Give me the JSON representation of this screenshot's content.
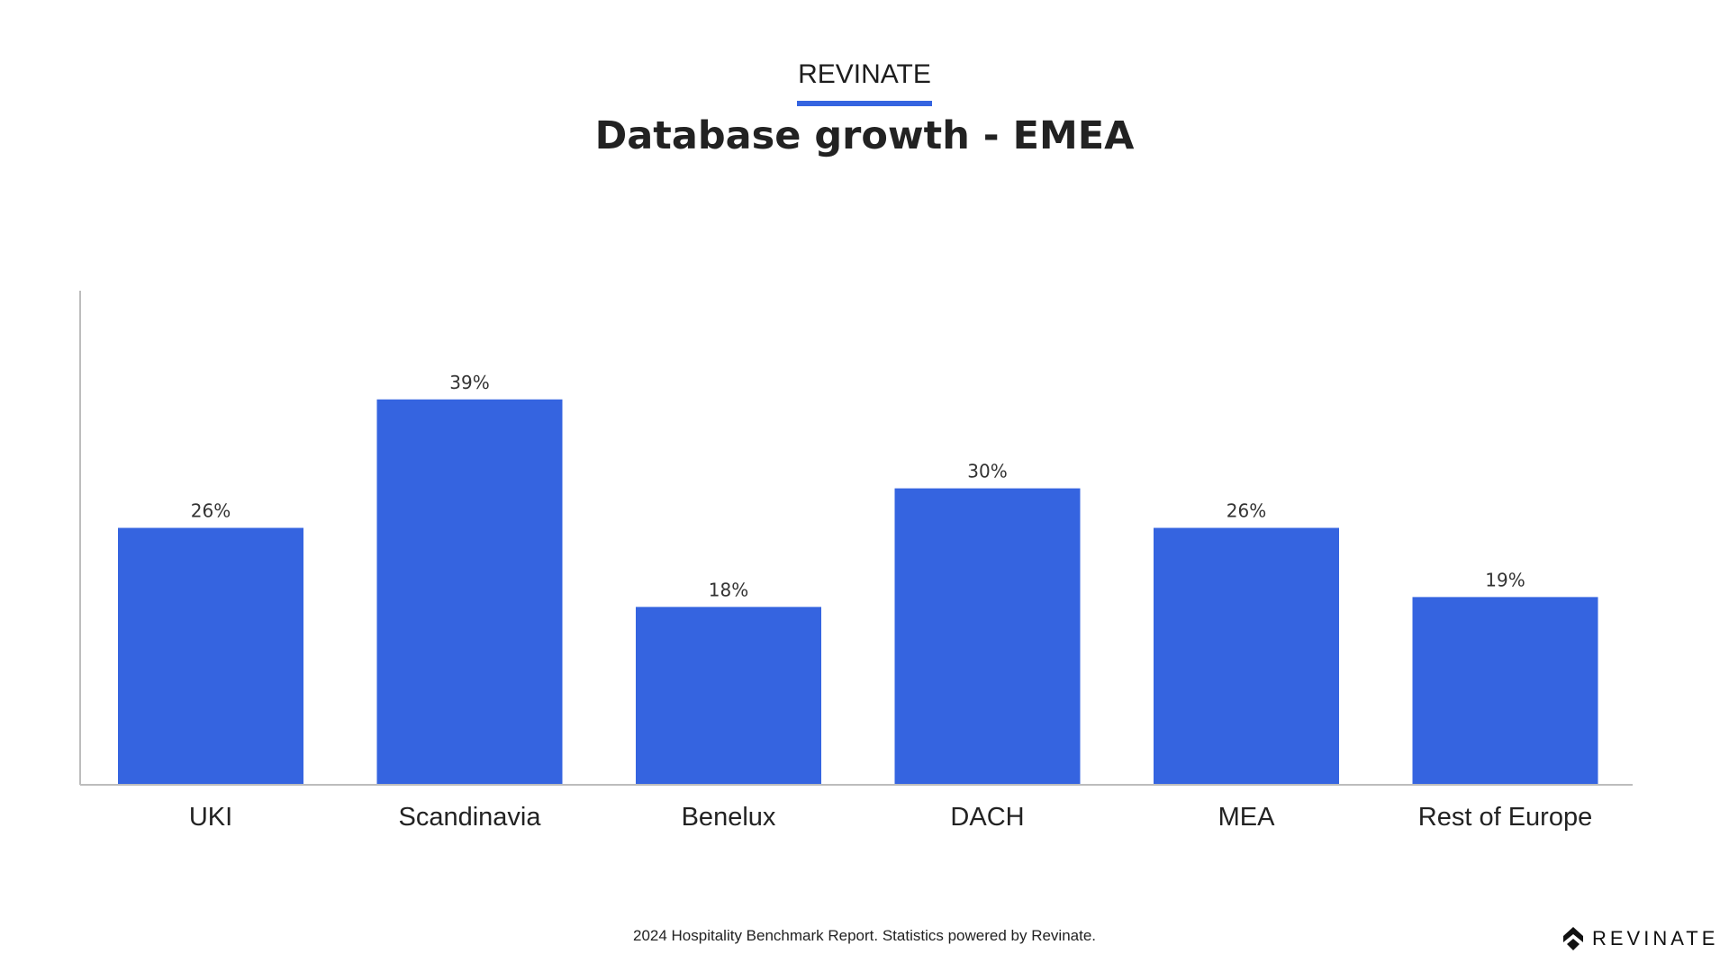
{
  "header": {
    "brand": "REVINATE"
  },
  "chart_data": {
    "type": "bar",
    "title": "Database growth - EMEA",
    "categories": [
      "UKI",
      "Scandinavia",
      "Benelux",
      "DACH",
      "MEA",
      "Rest of Europe"
    ],
    "values": [
      26,
      39,
      18,
      30,
      26,
      19
    ],
    "data_labels": [
      "26%",
      "39%",
      "18%",
      "30%",
      "26%",
      "19%"
    ],
    "unit": "%",
    "xlabel": "",
    "ylabel": "",
    "ylim": [
      0,
      50
    ],
    "grid": false,
    "bar_color": "#3564e0"
  },
  "footer": {
    "text": "2024 Hospitality Benchmark Report. Statistics powered by Revinate.",
    "logo_text": "REVINATE"
  },
  "colors": {
    "accent": "#3564e0"
  }
}
